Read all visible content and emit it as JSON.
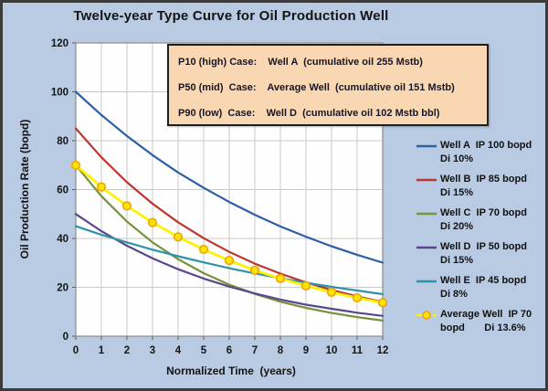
{
  "title": "Twelve-year Type Curve for Oil Production Well",
  "axes": {
    "x_title": "Normalized Time  (years)",
    "y_title": "Oil Production Rate  (bopd)"
  },
  "annotation": {
    "lines": [
      "P10 (high) Case:    Well A  (cumulative oil 255 Mstb)",
      "P50 (mid)  Case:    Average Well  (cumulative oil 151 Mstb)",
      "P90 (low)  Case:    Well D  (cumulative oil 102 Mstb bbl)"
    ]
  },
  "legend": {
    "entries": [
      {
        "line1": "Well A  IP 100 bopd",
        "line2": "Di 10%",
        "color": "#2D5FA5",
        "marker": false
      },
      {
        "line1": "Well B  IP 85 bopd",
        "line2": "Di 15%",
        "color": "#BE352E",
        "marker": false
      },
      {
        "line1": "Well C  IP 70 bopd",
        "line2": "Di 20%",
        "color": "#76923C",
        "marker": false
      },
      {
        "line1": "Well D  IP 50 bopd",
        "line2": "Di 15%",
        "color": "#5A468C",
        "marker": false
      },
      {
        "line1": "Well E  IP 45 bopd",
        "line2": "Di 8%",
        "color": "#2F93A8",
        "marker": false
      },
      {
        "line1": "Average Well  IP 70",
        "line2": "bopd       Di 13.6%",
        "color": "#FFF200",
        "marker": true
      }
    ]
  },
  "chart_data": {
    "type": "line",
    "title": "Twelve-year Type Curve for Oil Production Well",
    "xlabel": "Normalized Time  (years)",
    "ylabel": "Oil Production Rate  (bopd)",
    "x": [
      0,
      1,
      2,
      3,
      4,
      5,
      6,
      7,
      8,
      9,
      10,
      11,
      12
    ],
    "xlim": [
      0,
      12
    ],
    "ylim": [
      0,
      120
    ],
    "yticks": [
      0,
      20,
      40,
      60,
      80,
      100,
      120
    ],
    "grid": true,
    "legend_position": "right",
    "series": [
      {
        "name": "Well A",
        "ip_bopd": 100,
        "di_pct": 10,
        "color": "#2D5FA5",
        "marker": false,
        "values": [
          100,
          90.5,
          81.9,
          74.1,
          67.0,
          60.7,
          54.9,
          49.7,
          44.9,
          40.7,
          36.8,
          33.3,
          30.1
        ]
      },
      {
        "name": "Well B",
        "ip_bopd": 85,
        "di_pct": 15,
        "color": "#BE352E",
        "marker": false,
        "values": [
          85,
          73.2,
          63.0,
          54.2,
          46.6,
          40.1,
          34.5,
          29.7,
          25.6,
          22.0,
          18.9,
          16.3,
          14.0
        ]
      },
      {
        "name": "Well C",
        "ip_bopd": 70,
        "di_pct": 20,
        "color": "#76923C",
        "marker": false,
        "values": [
          70,
          57.3,
          46.9,
          38.4,
          31.5,
          25.8,
          21.1,
          17.3,
          14.1,
          11.6,
          9.5,
          7.8,
          6.4
        ]
      },
      {
        "name": "Well D",
        "ip_bopd": 50,
        "di_pct": 15,
        "color": "#5A468C",
        "marker": false,
        "values": [
          50,
          43.0,
          37.0,
          31.9,
          27.4,
          23.6,
          20.3,
          17.5,
          15.0,
          12.9,
          11.2,
          9.6,
          8.3
        ]
      },
      {
        "name": "Well E",
        "ip_bopd": 45,
        "di_pct": 8,
        "color": "#2F93A8",
        "marker": false,
        "values": [
          45,
          41.5,
          38.4,
          35.4,
          32.7,
          30.2,
          27.8,
          25.7,
          23.7,
          21.9,
          20.2,
          18.7,
          17.2
        ]
      },
      {
        "name": "Average Well",
        "ip_bopd": 70,
        "di_pct": 13.6,
        "color": "#FFF200",
        "marker": true,
        "marker_fill": "#FFE800",
        "marker_stroke": "#F2A007",
        "values": [
          70,
          61.1,
          53.3,
          46.5,
          40.6,
          35.5,
          31.0,
          27.0,
          23.6,
          20.6,
          18.0,
          15.7,
          13.7
        ]
      }
    ],
    "cumulative_oil_mstb": {
      "well_a": 255,
      "average_well": 151,
      "well_d": 102
    }
  },
  "colors": {
    "background": "#B9CBE3",
    "plot_background": "#FEFEFE",
    "grid": "#C9C9C9",
    "plot_border": "#8C8C8C",
    "tick": "#5A5A5A",
    "text": "#141414",
    "annotation_background": "#FAD7B3",
    "annotation_border": "#1F1F1F",
    "frame_border": "#3B3B3B",
    "marker_stroke": "#F2A007"
  }
}
